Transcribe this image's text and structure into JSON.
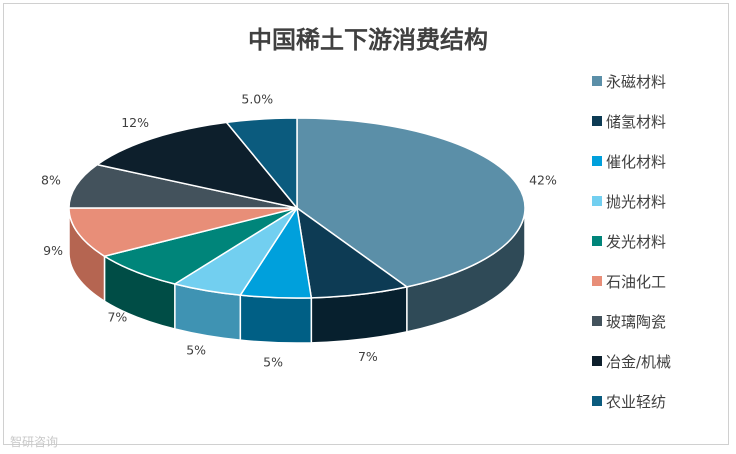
{
  "chart_data": {
    "type": "pie",
    "title": "中国稀土下游消费结构",
    "legend_position": "right",
    "style": "3d",
    "slices": [
      {
        "label": "永磁材料",
        "value": 42,
        "display": "42%",
        "color": "#5b8fa8",
        "side": "#2f4a57"
      },
      {
        "label": "储氢材料",
        "value": 7,
        "display": "7%",
        "color": "#0d3b54",
        "side": "#07202e"
      },
      {
        "label": "催化材料",
        "value": 5,
        "display": "5%",
        "color": "#00a0dc",
        "side": "#005f85"
      },
      {
        "label": "抛光材料",
        "value": 5,
        "display": "5%",
        "color": "#72cff0",
        "side": "#3f93b3"
      },
      {
        "label": "发光材料",
        "value": 7,
        "display": "7%",
        "color": "#00857a",
        "side": "#004d46"
      },
      {
        "label": "石油化工",
        "value": 9,
        "display": "9%",
        "color": "#e88e78",
        "side": "#b56551"
      },
      {
        "label": "玻璃陶瓷",
        "value": 8,
        "display": "8%",
        "color": "#43525c",
        "side": "#2a343a"
      },
      {
        "label": "冶金/机械",
        "value": 12,
        "display": "12%",
        "color": "#0d1f2c",
        "side": "#060e14"
      },
      {
        "label": "农业轻纺",
        "value": 5,
        "display": "5.0%",
        "color": "#0b5b7e",
        "side": "#06354a"
      }
    ]
  },
  "watermark": "智研咨询"
}
